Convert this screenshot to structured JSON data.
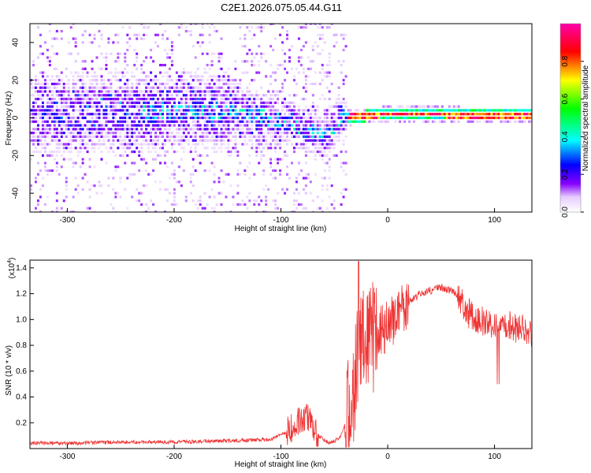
{
  "page_title": "C2E1.2026.075.05.44.G11",
  "chart_data": [
    {
      "type": "heatmap",
      "title": "C2E1.2026.075.05.44.G11",
      "xlabel": "Height of straight line (km)",
      "ylabel": "Frequency (Hz)",
      "xlim": [
        -335,
        135
      ],
      "ylim": [
        -50,
        50
      ],
      "xticks": [
        -300,
        -200,
        -100,
        0,
        100
      ],
      "yticks": [
        -40,
        -20,
        0,
        20,
        40
      ],
      "colorbar": {
        "label": "Normalized spectral amplitude",
        "range": [
          0.0,
          1.0
        ],
        "ticks": [
          "0.0",
          "0.2",
          "0.4",
          "0.6",
          "0.8"
        ],
        "colormap": [
          "#ffffff",
          "#d9b3ff",
          "#6600ff",
          "#0000ff",
          "#00ffff",
          "#00ff00",
          "#ffff00",
          "#ff0000",
          "#ff00aa"
        ]
      },
      "ridge": {
        "description_points": [
          {
            "x": -335,
            "y": 2
          },
          {
            "x": -150,
            "y": 4
          },
          {
            "x": -100,
            "y": -2
          },
          {
            "x": -60,
            "y": -10
          },
          {
            "x": -45,
            "y": 0
          },
          {
            "x": 0,
            "y": 2
          },
          {
            "x": 135,
            "y": 1
          }
        ]
      },
      "grid": false
    },
    {
      "type": "line",
      "xlabel": "Height of straight line (km)",
      "ylabel": "SNR (10 * v/v)",
      "y_multiplier_label": "(x10",
      "y_multiplier_exp": "4",
      "xlim": [
        -335,
        135
      ],
      "ylim": [
        0,
        1.46
      ],
      "xticks": [
        -300,
        -200,
        -100,
        0,
        100
      ],
      "yticks": [
        "0.2",
        "0.4",
        "0.6",
        "0.8",
        "1.0",
        "1.2",
        "1.4"
      ],
      "series": [
        {
          "color": "#ee3333",
          "points": [
            {
              "x": -335,
              "y": 0.04
            },
            {
              "x": -300,
              "y": 0.04
            },
            {
              "x": -250,
              "y": 0.05
            },
            {
              "x": -200,
              "y": 0.05
            },
            {
              "x": -150,
              "y": 0.06
            },
            {
              "x": -110,
              "y": 0.07
            },
            {
              "x": -95,
              "y": 0.12
            },
            {
              "x": -80,
              "y": 0.25
            },
            {
              "x": -72,
              "y": 0.22
            },
            {
              "x": -65,
              "y": 0.1
            },
            {
              "x": -55,
              "y": 0.04
            },
            {
              "x": -45,
              "y": 0.08
            },
            {
              "x": -35,
              "y": 0.3
            },
            {
              "x": -25,
              "y": 0.9
            },
            {
              "x": -15,
              "y": 0.85
            },
            {
              "x": 0,
              "y": 0.95
            },
            {
              "x": 15,
              "y": 1.1
            },
            {
              "x": 30,
              "y": 1.2
            },
            {
              "x": 50,
              "y": 1.25
            },
            {
              "x": 65,
              "y": 1.2
            },
            {
              "x": 75,
              "y": 1.05
            },
            {
              "x": 85,
              "y": 1.0
            },
            {
              "x": 100,
              "y": 0.95
            },
            {
              "x": 115,
              "y": 0.95
            },
            {
              "x": 135,
              "y": 0.9
            }
          ]
        }
      ],
      "grid": false
    }
  ]
}
